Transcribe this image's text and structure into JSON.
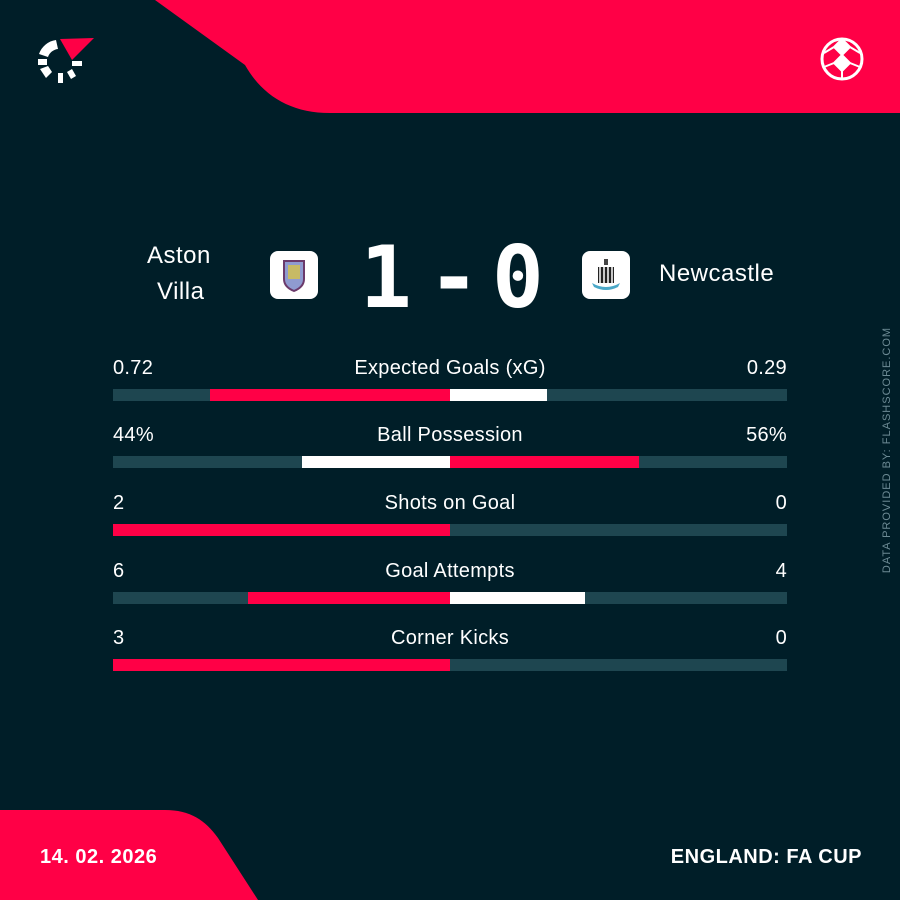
{
  "colors": {
    "background": "#001e28",
    "accent": "#ff0046",
    "track": "#1e4650",
    "secondary": "#ffffff"
  },
  "brand": {
    "logo": "flashscore-logo",
    "sport_icon": "football-icon"
  },
  "match": {
    "home": {
      "name_line1": "Aston",
      "name_line2": "Villa",
      "crest": "aston-villa-crest",
      "score": "1"
    },
    "away": {
      "name": "Newcastle",
      "crest": "newcastle-crest",
      "score": "0"
    },
    "separator": "-"
  },
  "stats": [
    {
      "label": "Expected Goals (xG)",
      "home": "0.72",
      "away": "0.29",
      "home_value": 0.72,
      "away_value": 0.29
    },
    {
      "label": "Ball Possession",
      "home": "44%",
      "away": "56%",
      "home_value": 44,
      "away_value": 56
    },
    {
      "label": "Shots on Goal",
      "home": "2",
      "away": "0",
      "home_value": 2,
      "away_value": 0
    },
    {
      "label": "Goal Attempts",
      "home": "6",
      "away": "4",
      "home_value": 6,
      "away_value": 4
    },
    {
      "label": "Corner Kicks",
      "home": "3",
      "away": "0",
      "home_value": 3,
      "away_value": 0
    }
  ],
  "footer": {
    "date": "14. 02. 2026",
    "competition": "ENGLAND: FA CUP"
  },
  "credit": "DATA PROVIDED BY: FLASHSCORE.COM"
}
